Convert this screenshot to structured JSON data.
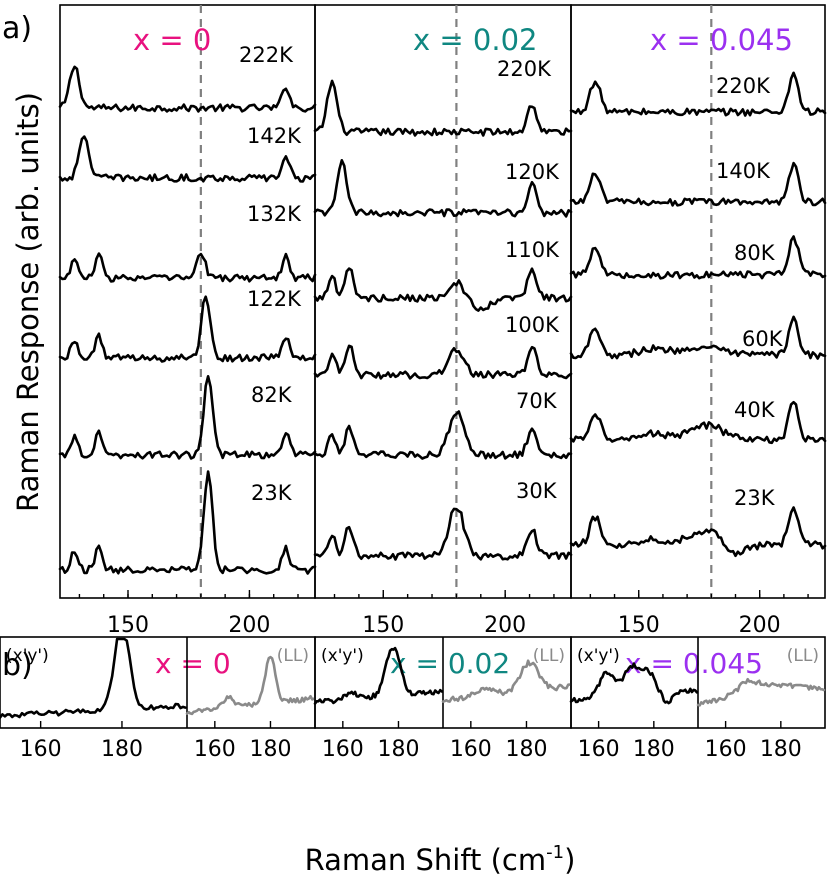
{
  "colors": {
    "x0": "#e8117f",
    "x002": "#0f8781",
    "x0045": "#9b30f0",
    "trace_main": "#000000",
    "trace_ll": "#8a8a8a",
    "dash": "#808080"
  },
  "labels": {
    "panel_a": "a)",
    "panel_b": "b)",
    "ylabel": "Raman Response (arb. units)",
    "xlabel_main": "Raman Shift (cm",
    "xlabel_sup": "-1",
    "xlabel_close": ")"
  },
  "chart_data": [
    {
      "type": "line",
      "panel": "a",
      "xlim": [
        122,
        227
      ],
      "ticks": [
        150,
        200
      ],
      "grid": false,
      "dashed_line_x": 180,
      "columns": [
        {
          "title": "x = 0",
          "color_key": "x0",
          "temperatures": [
            "222K",
            "142K",
            "132K",
            "122K",
            "82K",
            "23K"
          ]
        },
        {
          "title": "x = 0.02",
          "color_key": "x002",
          "temperatures": [
            "220K",
            "120K",
            "110K",
            "100K",
            "70K",
            "30K"
          ]
        },
        {
          "title": "x = 0.045",
          "color_key": "x0045",
          "temperatures": [
            "220K",
            "140K",
            "80K",
            "60K",
            "40K",
            "23K"
          ]
        }
      ]
    },
    {
      "type": "line",
      "panel": "b",
      "xlim": [
        150,
        196
      ],
      "ticks": [
        160,
        180
      ],
      "grid": false,
      "columns": [
        {
          "title": "x = 0",
          "color_key": "x0",
          "polarizations": [
            "(x'y')",
            "(LL)"
          ]
        },
        {
          "title": "x = 0.02",
          "color_key": "x002",
          "polarizations": [
            "(x'y')",
            "(LL)"
          ]
        },
        {
          "title": "x = 0.045",
          "color_key": "x0045",
          "polarizations": [
            "(x'y')",
            "(LL)"
          ]
        }
      ]
    }
  ]
}
